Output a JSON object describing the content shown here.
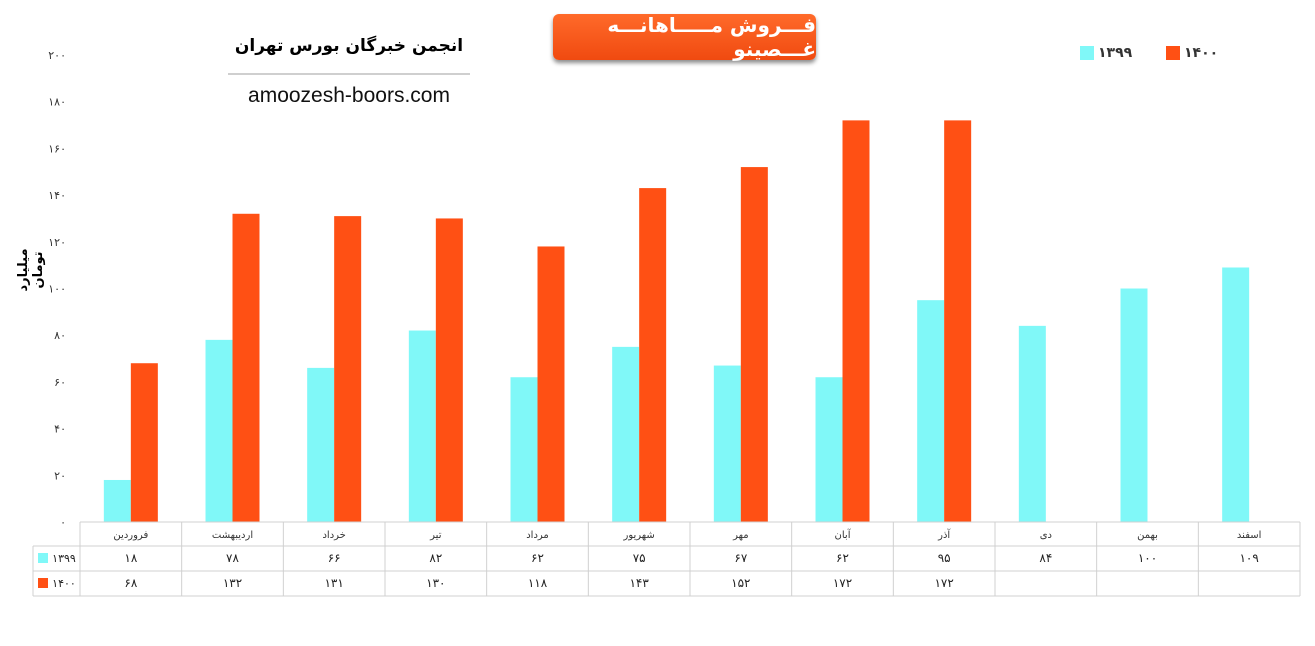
{
  "chart_data": {
    "type": "bar",
    "title": "فـــروش مـــــاهانـــه غـــصینو",
    "ylabel": "میلیارد تومان",
    "xlabel": "",
    "ylim": [
      0,
      200
    ],
    "yticks": [
      "۰",
      "۲۰",
      "۴۰",
      "۶۰",
      "۸۰",
      "۱۰۰",
      "۱۲۰",
      "۱۴۰",
      "۱۶۰",
      "۱۸۰",
      "۲۰۰"
    ],
    "categories": [
      "فروردین",
      "اردیبهشت",
      "خرداد",
      "تیر",
      "مرداد",
      "شهریور",
      "مهر",
      "آبان",
      "آذر",
      "دی",
      "بهمن",
      "اسفند"
    ],
    "series": [
      {
        "name": "۱۳۹۹",
        "color": "#80f8f8",
        "values": [
          18,
          78,
          66,
          82,
          62,
          75,
          67,
          62,
          95,
          84,
          100,
          109
        ],
        "labels": [
          "۱۸",
          "۷۸",
          "۶۶",
          "۸۲",
          "۶۲",
          "۷۵",
          "۶۷",
          "۶۲",
          "۹۵",
          "۸۴",
          "۱۰۰",
          "۱۰۹"
        ]
      },
      {
        "name": "۱۴۰۰",
        "color": "#ff5014",
        "values": [
          68,
          132,
          131,
          130,
          118,
          143,
          152,
          172,
          172,
          null,
          null,
          null
        ],
        "labels": [
          "۶۸",
          "۱۳۲",
          "۱۳۱",
          "۱۳۰",
          "۱۱۸",
          "۱۴۳",
          "۱۵۲",
          "۱۷۲",
          "۱۷۲",
          "",
          "",
          ""
        ]
      }
    ],
    "legend_position": "top-right",
    "grid": false,
    "data_table": true
  },
  "header": {
    "org_name": "انجمن خبرگان بورس تهران",
    "website": "amoozesh-boors.com"
  }
}
